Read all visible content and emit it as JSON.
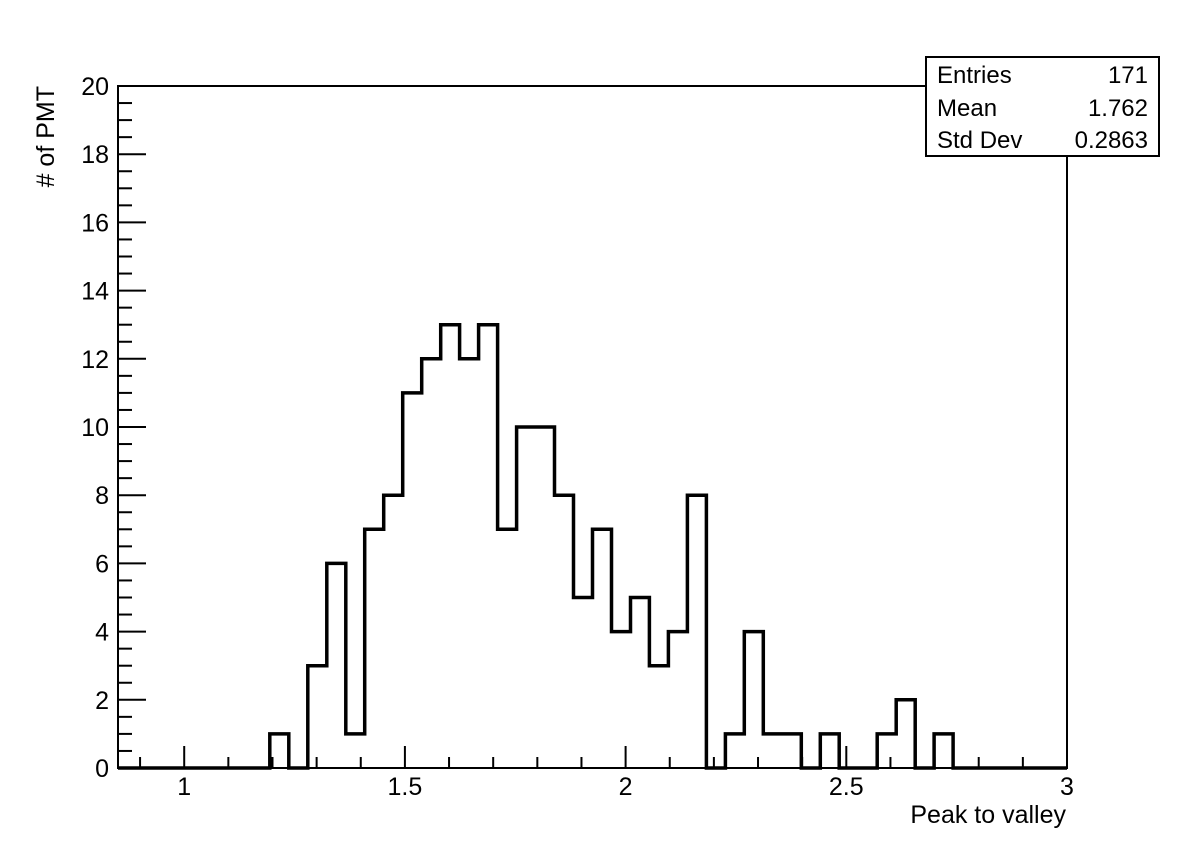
{
  "chart_data": {
    "type": "histogram",
    "xlabel": "Peak to valley",
    "ylabel": "# of PMT",
    "xlim": [
      0.85,
      3.0
    ],
    "ylim": [
      0,
      20
    ],
    "bin_width": 0.043,
    "x_ticks": [
      1,
      1.5,
      2,
      2.5,
      3
    ],
    "x_tick_labels": [
      "1",
      "1.5",
      "2",
      "2.5",
      "3"
    ],
    "y_ticks": [
      0,
      2,
      4,
      6,
      8,
      10,
      12,
      14,
      16,
      18,
      20
    ],
    "y_tick_labels": [
      "0",
      "2",
      "4",
      "6",
      "8",
      "10",
      "12",
      "14",
      "16",
      "18",
      "20"
    ],
    "bin_edges": [
      0.85,
      0.893,
      0.936,
      0.979,
      1.022,
      1.065,
      1.108,
      1.151,
      1.194,
      1.237,
      1.28,
      1.323,
      1.366,
      1.409,
      1.452,
      1.495,
      1.538,
      1.581,
      1.624,
      1.667,
      1.71,
      1.753,
      1.796,
      1.839,
      1.882,
      1.925,
      1.968,
      2.011,
      2.054,
      2.097,
      2.14,
      2.183,
      2.226,
      2.269,
      2.312,
      2.355,
      2.398,
      2.441,
      2.484,
      2.527,
      2.57,
      2.613,
      2.656,
      2.699,
      2.742,
      2.785,
      2.828,
      2.871,
      2.914,
      2.957,
      3.0
    ],
    "counts": [
      0,
      0,
      0,
      0,
      0,
      0,
      0,
      0,
      1,
      0,
      3,
      6,
      1,
      7,
      8,
      11,
      12,
      13,
      12,
      13,
      7,
      10,
      10,
      8,
      5,
      7,
      4,
      5,
      3,
      4,
      8,
      0,
      1,
      4,
      1,
      1,
      0,
      1,
      0,
      0,
      1,
      2,
      0,
      1,
      0,
      0,
      0,
      0,
      0,
      0
    ],
    "legend_position": "top-right",
    "grid": false
  },
  "stats": {
    "entries_label": "Entries",
    "entries_value": "171",
    "mean_label": "Mean",
    "mean_value": "1.762",
    "std_label": "Std Dev",
    "std_value": "0.2863"
  }
}
